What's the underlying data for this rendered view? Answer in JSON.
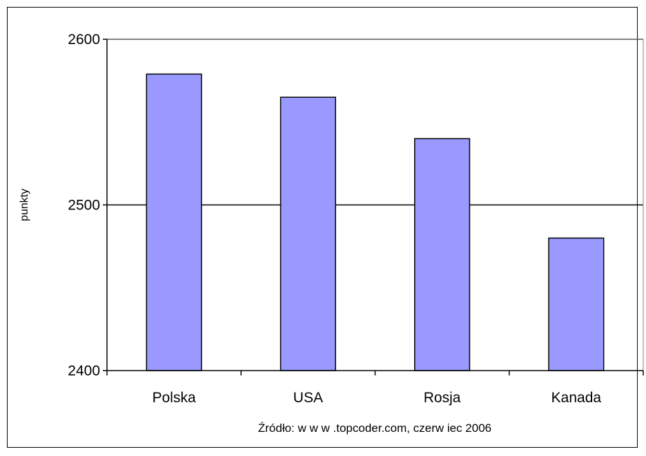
{
  "chart_data": {
    "type": "bar",
    "categories": [
      "Polska",
      "USA",
      "Rosja",
      "Kanada"
    ],
    "values": [
      2579,
      2565,
      2540,
      2480
    ],
    "title": "",
    "xlabel": "",
    "ylabel": "punkty",
    "ylim": [
      2400,
      2600
    ],
    "yticks": [
      2400,
      2500,
      2600
    ],
    "grid": true,
    "legend": "none",
    "bar_color": "#9999ff",
    "source_note": "Źródło: w w w .topcoder.com, czerw iec 2006"
  }
}
